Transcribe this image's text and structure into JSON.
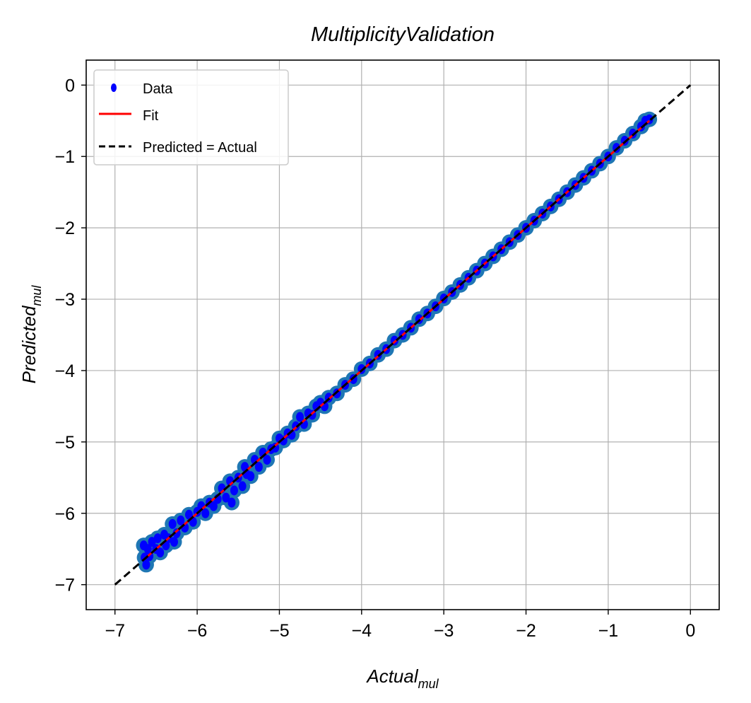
{
  "chart_data": {
    "type": "scatter",
    "title": "MultiplicityValidation",
    "xlabel": {
      "main": "Actual",
      "sub": "mul"
    },
    "ylabel": {
      "main": "Predicted",
      "sub": "mul"
    },
    "xlim": [
      -7.35,
      0.35
    ],
    "ylim": [
      -7.35,
      0.35
    ],
    "xticks": [
      -7,
      -6,
      -5,
      -4,
      -3,
      -2,
      -1,
      0
    ],
    "yticks": [
      0,
      -1,
      -2,
      -3,
      -4,
      -5,
      -6,
      -7
    ],
    "xtick_labels": [
      "−7",
      "−6",
      "−5",
      "−4",
      "−3",
      "−2",
      "−1",
      "0"
    ],
    "ytick_labels": [
      "0",
      "−1",
      "−2",
      "−3",
      "−4",
      "−5",
      "−6",
      "−7"
    ],
    "grid": true,
    "legend_position": "top-left",
    "legend": [
      "Data",
      "Fit",
      "Predicted = Actual"
    ],
    "colors": {
      "data": "#0000ff",
      "data_halo": "#1f77b4",
      "fit": "#ff0000",
      "identity": "#000000",
      "grid": "#b0b0b0"
    },
    "series": [
      {
        "name": "Data",
        "style": "points",
        "points": [
          [
            -6.65,
            -6.45
          ],
          [
            -6.64,
            -6.62
          ],
          [
            -6.62,
            -6.72
          ],
          [
            -6.6,
            -6.5
          ],
          [
            -6.58,
            -6.6
          ],
          [
            -6.55,
            -6.4
          ],
          [
            -6.5,
            -6.5
          ],
          [
            -6.48,
            -6.35
          ],
          [
            -6.45,
            -6.55
          ],
          [
            -6.4,
            -6.3
          ],
          [
            -6.38,
            -6.45
          ],
          [
            -6.35,
            -6.35
          ],
          [
            -6.3,
            -6.15
          ],
          [
            -6.28,
            -6.4
          ],
          [
            -6.25,
            -6.28
          ],
          [
            -6.2,
            -6.1
          ],
          [
            -6.15,
            -6.2
          ],
          [
            -6.1,
            -6.02
          ],
          [
            -6.05,
            -6.12
          ],
          [
            -6.0,
            -5.98
          ],
          [
            -5.95,
            -5.9
          ],
          [
            -5.9,
            -6.0
          ],
          [
            -5.85,
            -5.85
          ],
          [
            -5.8,
            -5.9
          ],
          [
            -5.75,
            -5.8
          ],
          [
            -5.7,
            -5.65
          ],
          [
            -5.65,
            -5.78
          ],
          [
            -5.6,
            -5.55
          ],
          [
            -5.58,
            -5.85
          ],
          [
            -5.55,
            -5.68
          ],
          [
            -5.5,
            -5.5
          ],
          [
            -5.45,
            -5.62
          ],
          [
            -5.42,
            -5.35
          ],
          [
            -5.4,
            -5.45
          ],
          [
            -5.35,
            -5.48
          ],
          [
            -5.3,
            -5.25
          ],
          [
            -5.25,
            -5.35
          ],
          [
            -5.2,
            -5.15
          ],
          [
            -5.15,
            -5.25
          ],
          [
            -5.1,
            -5.1
          ],
          [
            -5.05,
            -5.08
          ],
          [
            -5.0,
            -4.95
          ],
          [
            -4.95,
            -4.98
          ],
          [
            -4.9,
            -4.88
          ],
          [
            -4.85,
            -4.9
          ],
          [
            -4.8,
            -4.78
          ],
          [
            -4.75,
            -4.65
          ],
          [
            -4.7,
            -4.75
          ],
          [
            -4.65,
            -4.6
          ],
          [
            -4.6,
            -4.62
          ],
          [
            -4.55,
            -4.5
          ],
          [
            -4.5,
            -4.45
          ],
          [
            -4.45,
            -4.5
          ],
          [
            -4.4,
            -4.38
          ],
          [
            -4.3,
            -4.32
          ],
          [
            -4.2,
            -4.2
          ],
          [
            -4.1,
            -4.12
          ],
          [
            -4.0,
            -3.98
          ],
          [
            -3.9,
            -3.9
          ],
          [
            -3.8,
            -3.78
          ],
          [
            -3.7,
            -3.7
          ],
          [
            -3.6,
            -3.58
          ],
          [
            -3.5,
            -3.5
          ],
          [
            -3.4,
            -3.4
          ],
          [
            -3.3,
            -3.28
          ],
          [
            -3.2,
            -3.2
          ],
          [
            -3.1,
            -3.1
          ],
          [
            -3.0,
            -2.99
          ],
          [
            -2.9,
            -2.9
          ],
          [
            -2.8,
            -2.8
          ],
          [
            -2.7,
            -2.7
          ],
          [
            -2.6,
            -2.6
          ],
          [
            -2.5,
            -2.5
          ],
          [
            -2.4,
            -2.4
          ],
          [
            -2.3,
            -2.3
          ],
          [
            -2.2,
            -2.2
          ],
          [
            -2.1,
            -2.1
          ],
          [
            -2.0,
            -2.0
          ],
          [
            -1.9,
            -1.9
          ],
          [
            -1.8,
            -1.8
          ],
          [
            -1.7,
            -1.7
          ],
          [
            -1.6,
            -1.6
          ],
          [
            -1.5,
            -1.5
          ],
          [
            -1.4,
            -1.4
          ],
          [
            -1.3,
            -1.3
          ],
          [
            -1.2,
            -1.2
          ],
          [
            -1.1,
            -1.1
          ],
          [
            -1.0,
            -1.0
          ],
          [
            -0.9,
            -0.88
          ],
          [
            -0.8,
            -0.78
          ],
          [
            -0.7,
            -0.68
          ],
          [
            -0.6,
            -0.58
          ],
          [
            -0.55,
            -0.5
          ],
          [
            -0.5,
            -0.48
          ]
        ]
      },
      {
        "name": "Fit",
        "style": "line",
        "x": [
          -6.65,
          -0.5
        ],
        "y": [
          -6.65,
          -0.5
        ]
      },
      {
        "name": "Predicted = Actual",
        "style": "dashed-line",
        "x": [
          -7,
          0
        ],
        "y": [
          -7,
          0
        ]
      }
    ]
  }
}
